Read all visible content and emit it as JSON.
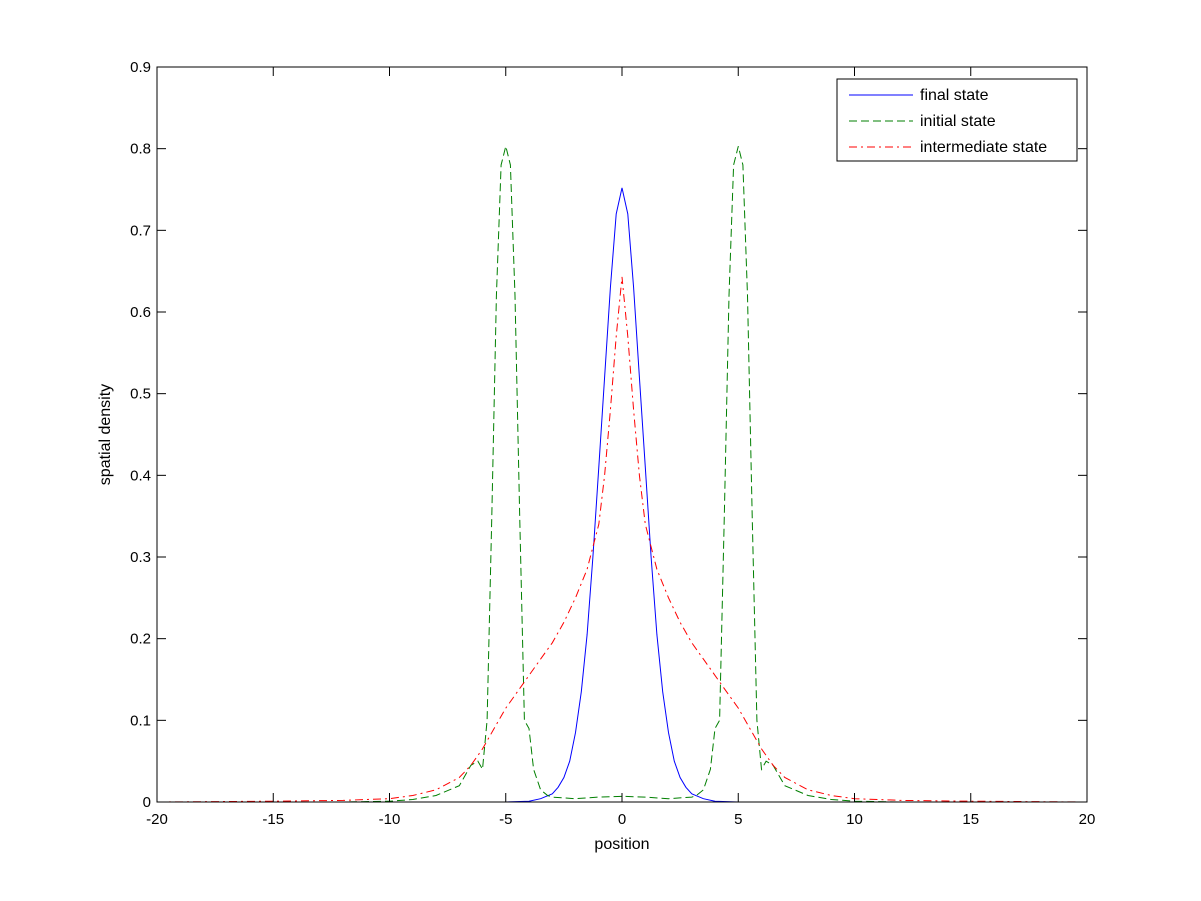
{
  "chart_data": {
    "type": "line",
    "title": "",
    "xlabel": "position",
    "ylabel": "spatial density",
    "xlim": [
      -20,
      20
    ],
    "ylim": [
      0,
      0.9
    ],
    "xticks": [
      -20,
      -15,
      -10,
      -5,
      0,
      5,
      10,
      15,
      20
    ],
    "yticks": [
      0,
      0.1,
      0.2,
      0.3,
      0.4,
      0.5,
      0.6,
      0.7,
      0.8,
      0.9
    ],
    "grid": false,
    "legend_position": "top-right",
    "series": [
      {
        "name": "final state",
        "color": "#0000ff",
        "style": "solid",
        "x": [
          -20,
          -10,
          -5,
          -4,
          -3.5,
          -3,
          -2.75,
          -2.5,
          -2.25,
          -2,
          -1.75,
          -1.5,
          -1.25,
          -1,
          -0.75,
          -0.5,
          -0.25,
          0,
          0.25,
          0.5,
          0.75,
          1,
          1.25,
          1.5,
          1.75,
          2,
          2.25,
          2.5,
          2.75,
          3,
          3.5,
          4,
          5,
          10,
          20
        ],
        "y": [
          0,
          0,
          0,
          0.001,
          0.004,
          0.01,
          0.018,
          0.03,
          0.05,
          0.085,
          0.135,
          0.205,
          0.3,
          0.41,
          0.52,
          0.63,
          0.72,
          0.752,
          0.72,
          0.63,
          0.52,
          0.41,
          0.3,
          0.205,
          0.135,
          0.085,
          0.05,
          0.03,
          0.018,
          0.01,
          0.004,
          0.001,
          0,
          0,
          0
        ]
      },
      {
        "name": "initial state",
        "color": "#007f00",
        "style": "dashed",
        "x": [
          -20,
          -12,
          -10,
          -9,
          -8,
          -7,
          -6.5,
          -6.2,
          -6,
          -5.8,
          -5.6,
          -5.4,
          -5.2,
          -5,
          -4.8,
          -4.6,
          -4.4,
          -4.2,
          -4,
          -3.8,
          -3.5,
          -3.2,
          -3,
          -2,
          -1,
          0,
          1,
          2,
          3,
          3.2,
          3.5,
          3.8,
          4,
          4.2,
          4.4,
          4.6,
          4.8,
          5,
          5.2,
          5.4,
          5.6,
          5.8,
          6,
          6.2,
          6.5,
          7,
          8,
          9,
          10,
          12,
          20
        ],
        "y": [
          0,
          0,
          0.001,
          0.003,
          0.008,
          0.02,
          0.045,
          0.05,
          0.04,
          0.1,
          0.35,
          0.62,
          0.78,
          0.803,
          0.78,
          0.62,
          0.35,
          0.1,
          0.09,
          0.04,
          0.015,
          0.008,
          0.006,
          0.004,
          0.006,
          0.007,
          0.006,
          0.004,
          0.006,
          0.008,
          0.015,
          0.04,
          0.09,
          0.1,
          0.35,
          0.62,
          0.78,
          0.803,
          0.78,
          0.62,
          0.35,
          0.1,
          0.04,
          0.05,
          0.045,
          0.02,
          0.008,
          0.003,
          0.001,
          0,
          0
        ]
      },
      {
        "name": "intermediate state",
        "color": "#ff0000",
        "style": "dashdot",
        "x": [
          -20,
          -15,
          -12,
          -11,
          -10,
          -9,
          -8,
          -7,
          -6.5,
          -6,
          -5.5,
          -5,
          -4.5,
          -4,
          -3.5,
          -3,
          -2.5,
          -2,
          -1.5,
          -1,
          -0.75,
          -0.5,
          -0.25,
          0,
          0.25,
          0.5,
          0.75,
          1,
          1.5,
          2,
          2.5,
          3,
          3.5,
          4,
          4.5,
          5,
          5.5,
          6,
          6.5,
          7,
          8,
          9,
          10,
          11,
          12,
          15,
          20
        ],
        "y": [
          0,
          0.001,
          0.002,
          0.003,
          0.004,
          0.008,
          0.015,
          0.03,
          0.045,
          0.065,
          0.09,
          0.115,
          0.135,
          0.155,
          0.175,
          0.195,
          0.22,
          0.25,
          0.285,
          0.34,
          0.4,
          0.48,
          0.57,
          0.643,
          0.57,
          0.48,
          0.4,
          0.34,
          0.285,
          0.25,
          0.22,
          0.195,
          0.175,
          0.155,
          0.135,
          0.115,
          0.09,
          0.065,
          0.045,
          0.03,
          0.015,
          0.008,
          0.004,
          0.003,
          0.002,
          0.001,
          0
        ]
      }
    ]
  }
}
